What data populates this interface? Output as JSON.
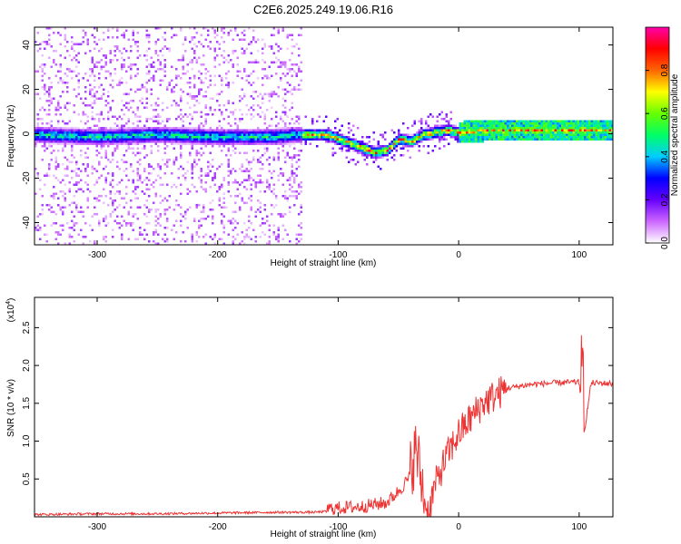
{
  "title": "C2E6.2025.249.19.06.R16",
  "chart_data": [
    {
      "type": "heatmap",
      "xlabel": "Height of straight line (km)",
      "ylabel": "Frequency (Hz)",
      "xlim": [
        -352,
        128
      ],
      "ylim": [
        -50,
        48
      ],
      "xticks": [
        -300,
        -200,
        -100,
        0,
        100
      ],
      "yticks": [
        -40,
        -20,
        0,
        20,
        40
      ],
      "colorbar": {
        "label": "Normalized spectral amplitude",
        "range": [
          0.0,
          1.0
        ],
        "ticks": [
          0.0,
          0.2,
          0.4,
          0.6,
          0.8
        ],
        "colors": [
          "#ffffff",
          "#cc66ff",
          "#6600ff",
          "#0000ff",
          "#00ccff",
          "#00ff66",
          "#66ff00",
          "#ffff00",
          "#ff6600",
          "#ff0000",
          "#ff00aa"
        ]
      },
      "ridge": {
        "x": [
          -350,
          -300,
          -250,
          -200,
          -160,
          -130,
          -110,
          -100,
          -90,
          -80,
          -70,
          -60,
          -50,
          -40,
          -30,
          -20,
          -10,
          0,
          20,
          50,
          80,
          100,
          128
        ],
        "y": [
          0,
          -1,
          0,
          -1,
          -1,
          0,
          0,
          -2,
          -4,
          -6,
          -8,
          -7,
          -2,
          -3,
          0,
          1,
          2,
          1,
          2,
          2,
          2,
          2,
          2
        ]
      }
    },
    {
      "type": "line",
      "xlabel": "Height of straight line (km)",
      "ylabel": "SNR (10 * v/v)",
      "y_multiplier": "(x10",
      "y_multiplier_exp": "4",
      "y_multiplier_close": ")",
      "xlim": [
        -352,
        128
      ],
      "ylim": [
        0,
        2.9
      ],
      "xticks": [
        -300,
        -200,
        -100,
        0,
        100
      ],
      "yticks": [
        0.5,
        1.0,
        1.5,
        2.0,
        2.5
      ],
      "color": "#ee3333",
      "series": [
        {
          "x": [
            -350,
            -300,
            -250,
            -200,
            -150,
            -120,
            -100,
            -80,
            -60,
            -50,
            -40,
            -35,
            -30,
            -25,
            -20,
            -10,
            0,
            10,
            20,
            30,
            40,
            60,
            80,
            100,
            104,
            110,
            128
          ],
          "y": [
            0.03,
            0.04,
            0.04,
            0.05,
            0.06,
            0.06,
            0.08,
            0.1,
            0.15,
            0.3,
            0.5,
            0.7,
            0.2,
            0.05,
            0.4,
            0.8,
            1.1,
            1.3,
            1.5,
            1.6,
            1.7,
            1.75,
            1.77,
            1.78,
            1.1,
            1.77,
            1.76
          ]
        }
      ]
    }
  ]
}
